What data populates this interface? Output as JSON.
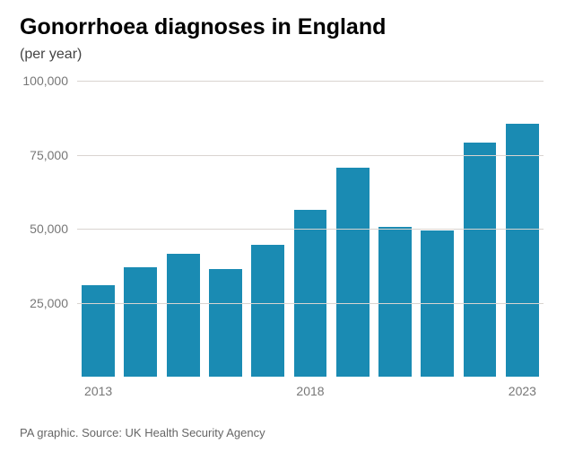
{
  "title": "Gonorrhoea diagnoses in England",
  "subtitle": "(per year)",
  "footer": "PA graphic. Source: UK Health Security Agency",
  "chart": {
    "type": "bar",
    "background_color": "#ffffff",
    "grid_color": "#d9d4d0",
    "bar_color": "#1a8bb3",
    "bar_width_ratio": 0.78,
    "title_fontsize": 25,
    "title_color": "#000000",
    "subtitle_fontsize": 16,
    "subtitle_color": "#444444",
    "tick_fontsize": 14,
    "tick_color": "#777777",
    "footer_fontsize": 13,
    "footer_color": "#666666",
    "ylim": [
      0,
      100000
    ],
    "yticks": [
      25000,
      50000,
      75000,
      100000
    ],
    "ytick_labels": [
      "25,000",
      "50,000",
      "75,000",
      "100,000"
    ],
    "years": [
      2013,
      2014,
      2015,
      2016,
      2017,
      2018,
      2019,
      2020,
      2021,
      2022,
      2023
    ],
    "values": [
      31000,
      37000,
      41500,
      36500,
      44500,
      56500,
      70500,
      50500,
      49500,
      79000,
      85500
    ],
    "xtick_years": [
      2013,
      2018,
      2023
    ],
    "xtick_labels": [
      "2013",
      "2018",
      "2023"
    ]
  }
}
